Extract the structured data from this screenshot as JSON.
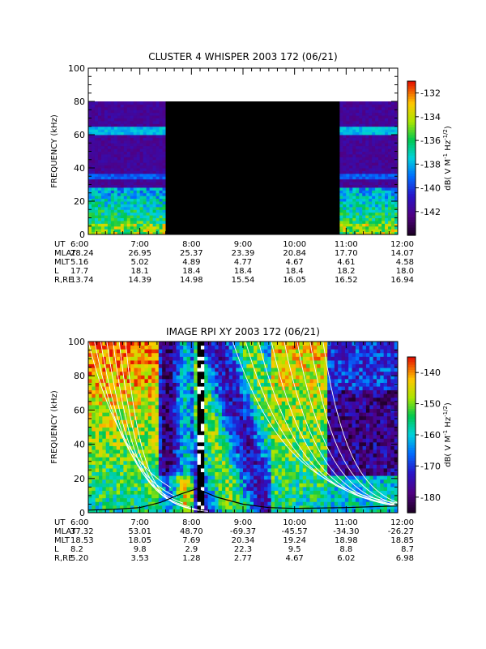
{
  "chart_data": [
    {
      "type": "heatmap",
      "title": "CLUSTER 4 WHISPER 2003 172 (06/21)",
      "ylabel": "FREQUENCY (kHz)",
      "ylim": [
        0,
        100
      ],
      "y_ticks": [
        "0",
        "20",
        "40",
        "60",
        "80",
        "100"
      ],
      "colorbar": {
        "label_main": "dB( V M",
        "label_sup1": "-1",
        "label_mid": " Hz",
        "label_sup2": "-1/2",
        "label_end": ")",
        "range": [
          -144,
          -131
        ],
        "ticks": [
          "-132",
          "-134",
          "-136",
          "-138",
          "-140",
          "-142"
        ]
      },
      "x_axis": {
        "row_labels": [
          "UT",
          "MLAT",
          "MLT",
          "L",
          "R,RE"
        ],
        "columns": [
          {
            "UT": "6:00",
            "MLAT": "28.24",
            "MLT": "5.16",
            "L": "17.7",
            "RE": "13.74"
          },
          {
            "UT": "7:00",
            "MLAT": "26.95",
            "MLT": "5.02",
            "L": "18.1",
            "RE": "14.39"
          },
          {
            "UT": "8:00",
            "MLAT": "25.37",
            "MLT": "4.89",
            "L": "18.4",
            "RE": "14.98"
          },
          {
            "UT": "9:00",
            "MLAT": "23.39",
            "MLT": "4.77",
            "L": "18.4",
            "RE": "15.54"
          },
          {
            "UT": "10:00",
            "MLAT": "20.84",
            "MLT": "4.67",
            "L": "18.4",
            "RE": "16.05"
          },
          {
            "UT": "11:00",
            "MLAT": "17.70",
            "MLT": "4.61",
            "L": "18.2",
            "RE": "16.52"
          },
          {
            "UT": "12:00",
            "MLAT": "14.07",
            "MLT": "4.58",
            "L": "18.0",
            "RE": "16.94"
          }
        ]
      },
      "features": {
        "data_gap_hours": [
          7.5,
          10.85
        ],
        "data_top_khz": 80,
        "emission_line_khz": 62
      }
    },
    {
      "type": "heatmap",
      "title": "IMAGE RPI XY 2003 172 (06/21)",
      "ylabel": "FREQUENCY (kHz)",
      "ylim": [
        0,
        100
      ],
      "y_ticks": [
        "0",
        "20",
        "40",
        "60",
        "80",
        "100"
      ],
      "colorbar": {
        "label_main": "dB( V M",
        "label_sup1": "-1",
        "label_mid": " Hz",
        "label_sup2": "-1/2",
        "label_end": ")",
        "range": [
          -185,
          -135
        ],
        "ticks": [
          "-140",
          "-150",
          "-160",
          "-170",
          "-180"
        ]
      },
      "x_axis": {
        "row_labels": [
          "UT",
          "MLAT",
          "MLT",
          "L",
          "R,RE"
        ],
        "columns": [
          {
            "UT": "6:00",
            "MLAT": "37.32",
            "MLT": "18.53",
            "L": "8.2",
            "RE": "5.20"
          },
          {
            "UT": "7:00",
            "MLAT": "53.01",
            "MLT": "18.05",
            "L": "9.8",
            "RE": "3.53"
          },
          {
            "UT": "8:00",
            "MLAT": "48.70",
            "MLT": "7.69",
            "L": "2.9",
            "RE": "1.28"
          },
          {
            "UT": "9:00",
            "MLAT": "-69.37",
            "MLT": "20.34",
            "L": "22.3",
            "RE": "2.77"
          },
          {
            "UT": "10:00",
            "MLAT": "-45.57",
            "MLT": "19.24",
            "L": "9.5",
            "RE": "4.67"
          },
          {
            "UT": "11:00",
            "MLAT": "-34.30",
            "MLT": "18.98",
            "L": "8.8",
            "RE": "6.02"
          },
          {
            "UT": "12:00",
            "MLAT": "-26.27",
            "MLT": "18.85",
            "L": "8.7",
            "RE": "6.98"
          }
        ]
      },
      "features": {
        "dark_gap_hours": [
          8.05,
          8.2
        ],
        "black_curve": [
          {
            "t": 6.0,
            "f": 1.5
          },
          {
            "t": 6.5,
            "f": 2
          },
          {
            "t": 7.0,
            "f": 3
          },
          {
            "t": 7.4,
            "f": 6
          },
          {
            "t": 7.8,
            "f": 11
          },
          {
            "t": 8.1,
            "f": 14
          },
          {
            "t": 8.5,
            "f": 9
          },
          {
            "t": 9.0,
            "f": 5
          },
          {
            "t": 9.5,
            "f": 3
          },
          {
            "t": 10.0,
            "f": 2.5
          },
          {
            "t": 11.0,
            "f": 3
          },
          {
            "t": 12.0,
            "f": 4
          }
        ]
      }
    }
  ]
}
